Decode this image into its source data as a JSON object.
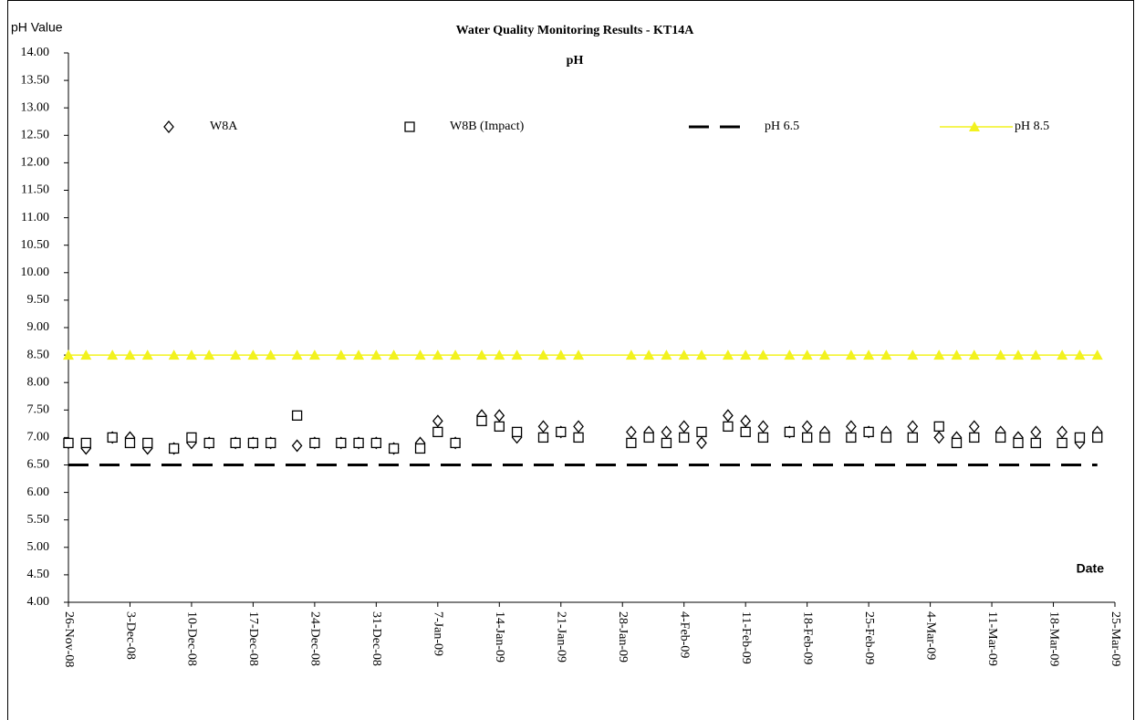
{
  "chart_data": {
    "type": "scatter",
    "title": "Water Quality Monitoring Results - KT14A",
    "subtitle": "pH",
    "y_label": "pH Value",
    "x_label": "Date",
    "x": [
      "2008-11-26",
      "2008-11-28",
      "2008-12-01",
      "2008-12-03",
      "2008-12-05",
      "2008-12-08",
      "2008-12-10",
      "2008-12-12",
      "2008-12-15",
      "2008-12-17",
      "2008-12-19",
      "2008-12-22",
      "2008-12-24",
      "2008-12-27",
      "2008-12-29",
      "2008-12-31",
      "2009-01-02",
      "2009-01-05",
      "2009-01-07",
      "2009-01-09",
      "2009-01-12",
      "2009-01-14",
      "2009-01-16",
      "2009-01-19",
      "2009-01-21",
      "2009-01-23",
      "2009-01-29",
      "2009-01-31",
      "2009-02-02",
      "2009-02-04",
      "2009-02-06",
      "2009-02-09",
      "2009-02-11",
      "2009-02-13",
      "2009-02-16",
      "2009-02-18",
      "2009-02-20",
      "2009-02-23",
      "2009-02-25",
      "2009-02-27",
      "2009-03-02",
      "2009-03-05",
      "2009-03-07",
      "2009-03-09",
      "2009-03-12",
      "2009-03-14",
      "2009-03-16",
      "2009-03-19",
      "2009-03-21",
      "2009-03-23"
    ],
    "series": [
      {
        "name": "W8A",
        "color": "#000000",
        "marker": "diamond",
        "line": "none",
        "values": [
          6.9,
          6.8,
          7.0,
          7.0,
          6.8,
          6.8,
          6.9,
          6.9,
          6.9,
          6.9,
          6.9,
          6.85,
          6.9,
          6.9,
          6.9,
          6.9,
          6.8,
          6.9,
          7.3,
          6.9,
          7.4,
          7.4,
          7.0,
          7.2,
          7.1,
          7.2,
          7.1,
          7.1,
          7.1,
          7.2,
          6.9,
          7.4,
          7.3,
          7.2,
          7.1,
          7.2,
          7.1,
          7.2,
          7.1,
          7.1,
          7.2,
          7.0,
          7.0,
          7.2,
          7.1,
          7.0,
          7.1,
          7.1,
          6.9,
          7.1
        ]
      },
      {
        "name": "W8B (Impact)",
        "color": "#000000",
        "marker": "square",
        "line": "none",
        "values": [
          6.9,
          6.9,
          7.0,
          6.9,
          6.9,
          6.8,
          7.0,
          6.9,
          6.9,
          6.9,
          6.9,
          7.4,
          6.9,
          6.9,
          6.9,
          6.9,
          6.8,
          6.8,
          7.1,
          6.9,
          7.3,
          7.2,
          7.1,
          7.0,
          7.1,
          7.0,
          6.9,
          7.0,
          6.9,
          7.0,
          7.1,
          7.2,
          7.1,
          7.0,
          7.1,
          7.0,
          7.0,
          7.0,
          7.1,
          7.0,
          7.0,
          7.2,
          6.9,
          7.0,
          7.0,
          6.9,
          6.9,
          6.9,
          7.0,
          7.0
        ]
      },
      {
        "name": "pH 6.5",
        "color": "#000000",
        "marker": "none",
        "line": "dashed",
        "values": [
          6.5,
          6.5,
          6.5,
          6.5,
          6.5,
          6.5,
          6.5,
          6.5,
          6.5,
          6.5,
          6.5,
          6.5,
          6.5,
          6.5,
          6.5,
          6.5,
          6.5,
          6.5,
          6.5,
          6.5,
          6.5,
          6.5,
          6.5,
          6.5,
          6.5,
          6.5,
          6.5,
          6.5,
          6.5,
          6.5,
          6.5,
          6.5,
          6.5,
          6.5,
          6.5,
          6.5,
          6.5,
          6.5,
          6.5,
          6.5,
          6.5,
          6.5,
          6.5,
          6.5,
          6.5,
          6.5,
          6.5,
          6.5,
          6.5,
          6.5
        ]
      },
      {
        "name": "pH 8.5",
        "color": "#f2f21e",
        "marker": "triangle",
        "line": "solid",
        "values": [
          8.5,
          8.5,
          8.5,
          8.5,
          8.5,
          8.5,
          8.5,
          8.5,
          8.5,
          8.5,
          8.5,
          8.5,
          8.5,
          8.5,
          8.5,
          8.5,
          8.5,
          8.5,
          8.5,
          8.5,
          8.5,
          8.5,
          8.5,
          8.5,
          8.5,
          8.5,
          8.5,
          8.5,
          8.5,
          8.5,
          8.5,
          8.5,
          8.5,
          8.5,
          8.5,
          8.5,
          8.5,
          8.5,
          8.5,
          8.5,
          8.5,
          8.5,
          8.5,
          8.5,
          8.5,
          8.5,
          8.5,
          8.5,
          8.5,
          8.5
        ]
      }
    ],
    "xlim": [
      "2008-11-26",
      "2009-03-25"
    ],
    "xticks": [
      {
        "value": "2008-11-26",
        "label": "26-Nov-08"
      },
      {
        "value": "2008-12-03",
        "label": "3-Dec-08"
      },
      {
        "value": "2008-12-10",
        "label": "10-Dec-08"
      },
      {
        "value": "2008-12-17",
        "label": "17-Dec-08"
      },
      {
        "value": "2008-12-24",
        "label": "24-Dec-08"
      },
      {
        "value": "2008-12-31",
        "label": "31-Dec-08"
      },
      {
        "value": "2009-01-07",
        "label": "7-Jan-09"
      },
      {
        "value": "2009-01-14",
        "label": "14-Jan-09"
      },
      {
        "value": "2009-01-21",
        "label": "21-Jan-09"
      },
      {
        "value": "2009-01-28",
        "label": "28-Jan-09"
      },
      {
        "value": "2009-02-04",
        "label": "4-Feb-09"
      },
      {
        "value": "2009-02-11",
        "label": "11-Feb-09"
      },
      {
        "value": "2009-02-18",
        "label": "18-Feb-09"
      },
      {
        "value": "2009-02-25",
        "label": "25-Feb-09"
      },
      {
        "value": "2009-03-04",
        "label": "4-Mar-09"
      },
      {
        "value": "2009-03-11",
        "label": "11-Mar-09"
      },
      {
        "value": "2009-03-18",
        "label": "18-Mar-09"
      },
      {
        "value": "2009-03-25",
        "label": "25-Mar-09"
      }
    ],
    "ylim": [
      4,
      14
    ],
    "yticks": [
      {
        "value": 4,
        "label": "4.00"
      },
      {
        "value": 4.5,
        "label": "4.50"
      },
      {
        "value": 5,
        "label": "5.00"
      },
      {
        "value": 5.5,
        "label": "5.50"
      },
      {
        "value": 6,
        "label": "6.00"
      },
      {
        "value": 6.5,
        "label": "6.50"
      },
      {
        "value": 7,
        "label": "7.00"
      },
      {
        "value": 7.5,
        "label": "7.50"
      },
      {
        "value": 8,
        "label": "8.00"
      },
      {
        "value": 8.5,
        "label": "8.50"
      },
      {
        "value": 9,
        "label": "9.00"
      },
      {
        "value": 9.5,
        "label": "9.50"
      },
      {
        "value": 10,
        "label": "10.00"
      },
      {
        "value": 10.5,
        "label": "10.50"
      },
      {
        "value": 11,
        "label": "11.00"
      },
      {
        "value": 11.5,
        "label": "11.50"
      },
      {
        "value": 12,
        "label": "12.00"
      },
      {
        "value": 12.5,
        "label": "12.50"
      },
      {
        "value": 13,
        "label": "13.00"
      },
      {
        "value": 13.5,
        "label": "13.50"
      },
      {
        "value": 14,
        "label": "14.00"
      }
    ],
    "grid": false,
    "legend": "top"
  }
}
